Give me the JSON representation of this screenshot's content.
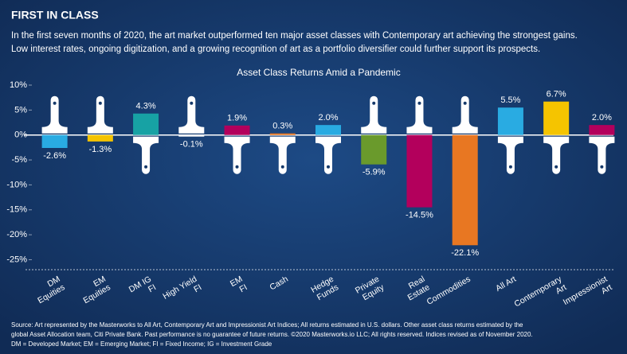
{
  "chart_data": {
    "type": "bar",
    "header": "FIRST IN CLASS",
    "subtitle": [
      "In the first seven months of 2020, the art market outperformed ten major asset classes with Contemporary art achieving the strongest gains.",
      "Low interest rates, ongoing digitization, and a growing recognition of art as a portfolio diversifier could further support its prospects."
    ],
    "title": "Asset Class Returns Amid a Pandemic",
    "categories": [
      [
        "DM",
        "Equities"
      ],
      [
        "EM",
        "Equities"
      ],
      [
        "DM IG",
        "FI"
      ],
      [
        "High Yield",
        "FI"
      ],
      [
        "EM",
        "FI"
      ],
      [
        "Cash"
      ],
      [
        "Hedge",
        "Funds"
      ],
      [
        "Private",
        "Equity"
      ],
      [
        "Real",
        "Estate"
      ],
      [
        "Commodities"
      ],
      [
        "All Art"
      ],
      [
        "Contemporary",
        "Art"
      ],
      [
        "Impressionist",
        "Art"
      ]
    ],
    "values": [
      -2.6,
      -1.3,
      4.3,
      -0.1,
      1.9,
      0.3,
      2.0,
      -5.9,
      -14.5,
      -22.1,
      5.5,
      6.7,
      2.0
    ],
    "value_labels": [
      "-2.6%",
      "-1.3%",
      "4.3%",
      "-0.1%",
      "1.9%",
      "0.3%",
      "2.0%",
      "-5.9%",
      "-14.5%",
      "-22.1%",
      "5.5%",
      "6.7%",
      "2.0%"
    ],
    "colors": [
      "#29abe2",
      "#f5c400",
      "#17a2a4",
      "#ffffff",
      "#b3005c",
      "#e87722",
      "#29abe2",
      "#6a9a2c",
      "#b3005c",
      "#e87722",
      "#29abe2",
      "#f5c400",
      "#b3005c"
    ],
    "ylim": [
      -27,
      10
    ],
    "yticks": [
      {
        "value": 10,
        "label": "10%"
      },
      {
        "value": 5,
        "label": "5%"
      },
      {
        "value": 0,
        "label": "0%"
      },
      {
        "value": -5,
        "label": "-5%"
      },
      {
        "value": -10,
        "label": "-10%"
      },
      {
        "value": -15,
        "label": "-15%"
      },
      {
        "value": -20,
        "label": "-20%"
      },
      {
        "value": -25,
        "label": "-25%"
      }
    ],
    "footnote": [
      "Source: Art represented by the Masterworks to All Art, Contemporary Art and Impressionist Art Indices; All returns estimated in U.S. dollars. Other asset class returns estimated by the",
      "global Asset Allocation team, Citi Private Bank. Past performance is no guarantee of future returns. ©2020 Masterworks.io LLC; All rights reserved. Indices revised as of November 2020.",
      "DM = Developed Market; EM = Emerging Market; FI = Fixed Income; IG = Investment Grade"
    ]
  }
}
